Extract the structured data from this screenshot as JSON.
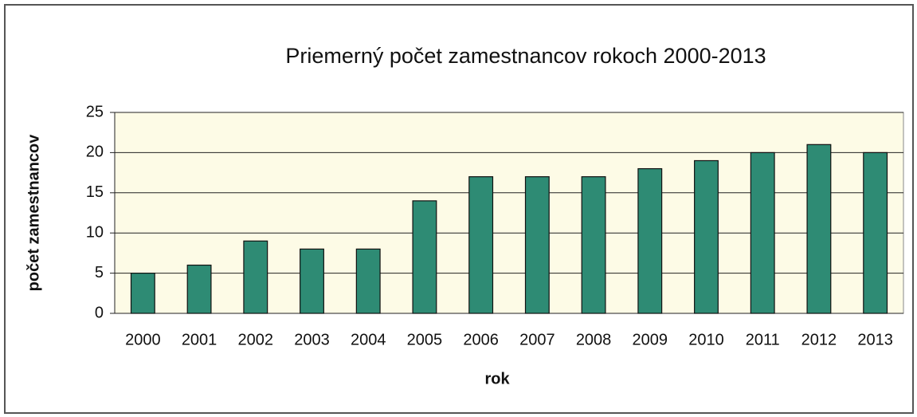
{
  "chart_data": {
    "type": "bar",
    "title": "Priemerný počet zamestnancov rokoch 2000-2013",
    "x_label": "rok",
    "y_label": "počet zamestnancov",
    "categories": [
      "2000",
      "2001",
      "2002",
      "2003",
      "2004",
      "2005",
      "2006",
      "2007",
      "2008",
      "2009",
      "2010",
      "2011",
      "2012",
      "2013"
    ],
    "values": [
      5,
      6,
      9,
      8,
      8,
      14,
      17,
      17,
      17,
      18,
      19,
      20,
      21,
      20
    ],
    "color": "#2e8b74",
    "ylim": [
      0,
      25
    ],
    "yticks": [
      0,
      5,
      10,
      15,
      20,
      25
    ],
    "grid": true
  }
}
